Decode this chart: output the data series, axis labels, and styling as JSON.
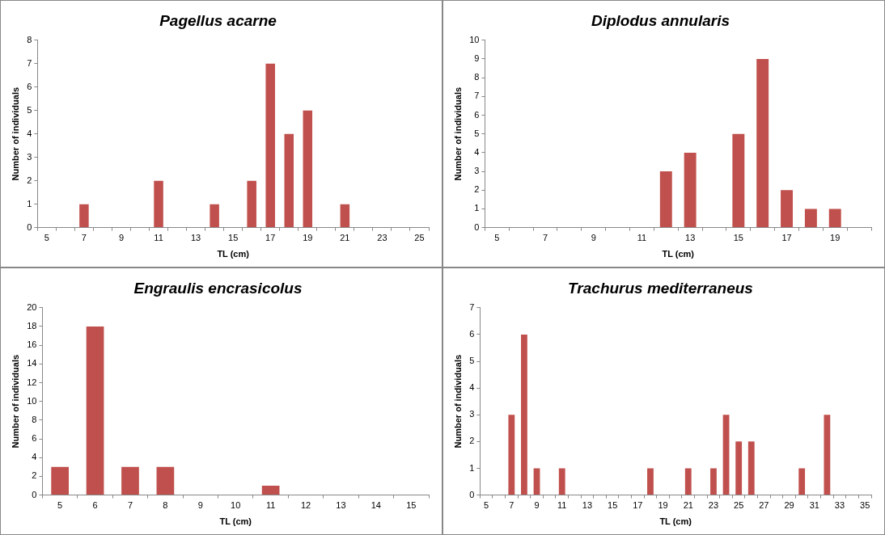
{
  "chart_data": [
    {
      "type": "bar",
      "title": "Pagellus acarne",
      "xlabel": "TL (cm)",
      "ylabel": "Number of individuals",
      "color": "#c0504d",
      "categories": [
        "5",
        null,
        "7",
        null,
        "9",
        null,
        "11",
        null,
        "13",
        null,
        "15",
        null,
        "17",
        null,
        "19",
        null,
        "21",
        null,
        "23",
        null,
        "25"
      ],
      "values": [
        0,
        0,
        1,
        0,
        0,
        0,
        2,
        0,
        0,
        1,
        0,
        2,
        7,
        4,
        5,
        0,
        1,
        0,
        0,
        0,
        0
      ],
      "ylim": [
        0,
        8
      ],
      "yticks": [
        0,
        1,
        2,
        3,
        4,
        5,
        6,
        7,
        8
      ]
    },
    {
      "type": "bar",
      "title": "Diplodus annularis",
      "xlabel": "TL (cm)",
      "ylabel": "Number of individuals",
      "color": "#c0504d",
      "categories": [
        "5",
        null,
        "7",
        null,
        "9",
        null,
        "11",
        null,
        "13",
        null,
        "15",
        null,
        "17",
        null,
        "19",
        null
      ],
      "values": [
        0,
        0,
        0,
        0,
        0,
        0,
        0,
        3,
        4,
        0,
        5,
        9,
        2,
        1,
        1,
        0
      ],
      "ylim": [
        0,
        10
      ],
      "yticks": [
        0,
        1,
        2,
        3,
        4,
        5,
        6,
        7,
        8,
        9,
        10
      ]
    },
    {
      "type": "bar",
      "title": "Engraulis encrasicolus",
      "xlabel": "TL (cm)",
      "ylabel": "Number of individuals",
      "color": "#c0504d",
      "categories": [
        "5",
        "6",
        "7",
        "8",
        "9",
        "10",
        "11",
        "12",
        "13",
        "14",
        "15"
      ],
      "values": [
        3,
        18,
        3,
        3,
        0,
        0,
        1,
        0,
        0,
        0,
        0
      ],
      "ylim": [
        0,
        20
      ],
      "yticks": [
        0,
        2,
        4,
        6,
        8,
        10,
        12,
        14,
        16,
        18,
        20
      ]
    },
    {
      "type": "bar",
      "title": "Trachurus mediterraneus",
      "xlabel": "TL (cm)",
      "ylabel": "Number of individuals",
      "color": "#c0504d",
      "categories": [
        "5",
        null,
        "7",
        null,
        "9",
        null,
        "11",
        null,
        "13",
        null,
        "15",
        null,
        "17",
        null,
        "19",
        null,
        "21",
        null,
        "23",
        null,
        "25",
        null,
        "27",
        null,
        "29",
        null,
        "31",
        null,
        "33",
        null,
        "35"
      ],
      "values": [
        0,
        0,
        3,
        6,
        1,
        0,
        1,
        0,
        0,
        0,
        0,
        0,
        0,
        1,
        0,
        0,
        1,
        0,
        1,
        3,
        2,
        2,
        0,
        0,
        0,
        1,
        0,
        3,
        0,
        0,
        0
      ],
      "ylim": [
        0,
        7
      ],
      "yticks": [
        0,
        1,
        2,
        3,
        4,
        5,
        6,
        7
      ]
    }
  ]
}
